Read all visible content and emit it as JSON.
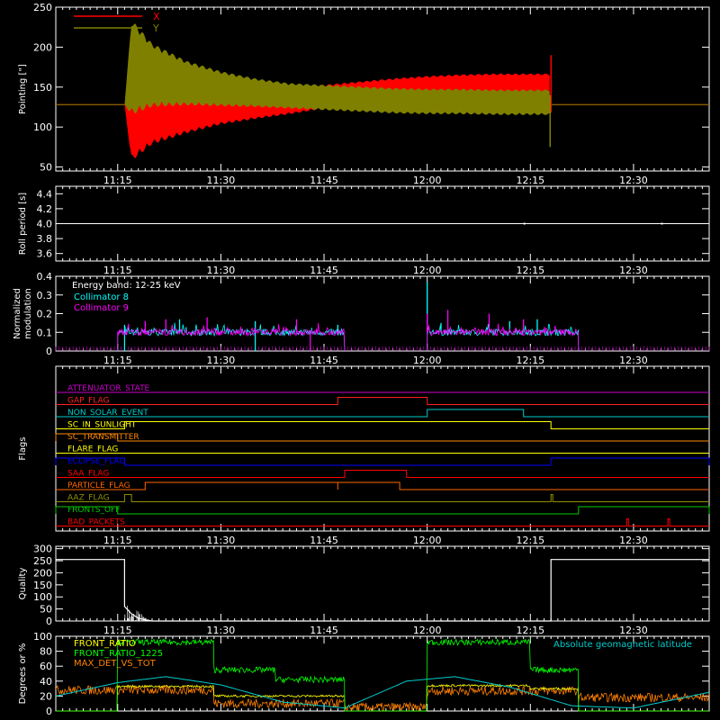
{
  "x_ticks": [
    "11:15",
    "11:30",
    "11:45",
    "12:00",
    "12:15",
    "12:30"
  ],
  "chart_data": [
    {
      "type": "line",
      "panel": "pointing",
      "ylabel": "Pointing [\"]",
      "ylim": [
        45,
        250
      ],
      "yticks": [
        "50",
        "100",
        "150",
        "200",
        "250"
      ],
      "xlim": [
        "11:06",
        "12:41"
      ],
      "legend": "top-left",
      "series": [
        {
          "name": "X",
          "color": "#ff0000",
          "x": [
            "11:06",
            "11:16",
            "11:17",
            "11:20",
            "11:25",
            "11:30",
            "11:35",
            "11:40",
            "11:45",
            "11:50",
            "11:55",
            "12:00",
            "12:05",
            "12:10",
            "12:15",
            "12:18",
            "12:18",
            "12:41"
          ],
          "y": [
            128,
            128,
            115,
            118,
            120,
            125,
            128,
            132,
            138,
            143,
            147,
            150,
            152,
            153,
            153,
            153,
            128,
            128
          ],
          "amplitude": [
            0,
            0,
            58,
            40,
            28,
            22,
            18,
            16,
            15,
            14,
            14,
            14,
            14,
            14,
            14,
            14,
            0,
            0
          ]
        },
        {
          "name": "Y",
          "color": "#808000",
          "x": [
            "11:06",
            "11:16",
            "11:17",
            "11:20",
            "11:25",
            "11:30",
            "11:35",
            "11:40",
            "11:45",
            "11:50",
            "11:55",
            "12:00",
            "12:05",
            "12:10",
            "12:15",
            "12:18",
            "12:18",
            "12:41"
          ],
          "y": [
            128,
            128,
            175,
            165,
            155,
            148,
            143,
            139,
            137,
            135,
            133,
            132,
            132,
            131,
            131,
            131,
            128,
            128
          ],
          "amplitude": [
            0,
            0,
            60,
            40,
            28,
            22,
            18,
            16,
            16,
            16,
            16,
            16,
            16,
            16,
            16,
            16,
            0,
            0
          ]
        }
      ]
    },
    {
      "type": "line",
      "panel": "roll_period",
      "ylabel": "Roll period [s]",
      "ylim": [
        3.5,
        4.5
      ],
      "yticks": [
        "3.6",
        "3.8",
        "4.0",
        "4.2",
        "4.4"
      ],
      "series": [
        {
          "name": "",
          "color": "#ffffff",
          "x": [
            "11:06",
            "12:41"
          ],
          "y": [
            4.0,
            4.0
          ]
        }
      ]
    },
    {
      "type": "line",
      "panel": "modulation",
      "ylabel": "Normalized modulation",
      "ylim": [
        0,
        0.4
      ],
      "yticks": [
        "0",
        "0.1",
        "0.2",
        "0.3",
        "0.4"
      ],
      "annotation": "Energy band: 12-25 keV",
      "legend": "top-left",
      "segments": [
        [
          "11:15",
          "11:48"
        ],
        [
          "12:00",
          "12:22"
        ]
      ],
      "series": [
        {
          "name": "Collimator 8",
          "color": "#00ffff",
          "baseline": 0.1,
          "spikes": [
            [
              "11:16",
              0.14
            ],
            [
              "11:24",
              0.17
            ],
            [
              "11:35",
              0.16
            ],
            [
              "11:47",
              0.14
            ],
            [
              "12:00",
              0.37
            ],
            [
              "12:02",
              0.15
            ],
            [
              "12:12",
              0.16
            ],
            [
              "12:16",
              0.17
            ]
          ],
          "drops": [
            "11:16",
            "11:35"
          ]
        },
        {
          "name": "Collimator 9",
          "color": "#ff00ff",
          "baseline": 0.1,
          "spikes": [
            [
              "11:19",
              0.16
            ],
            [
              "11:22",
              0.17
            ],
            [
              "11:28",
              0.18
            ],
            [
              "11:41",
              0.17
            ],
            [
              "12:00",
              0.2
            ],
            [
              "12:03",
              0.22
            ],
            [
              "12:09",
              0.2
            ],
            [
              "12:14",
              0.17
            ]
          ],
          "drops": [
            "11:43"
          ]
        }
      ]
    },
    {
      "type": "line",
      "panel": "flags",
      "ylabel": "Flags",
      "series": [
        {
          "name": "ATTENUATOR_STATE",
          "color": "#cc00cc",
          "steps": []
        },
        {
          "name": "GAP_FLAG",
          "color": "#ff2020",
          "steps": [
            [
              "11:47",
              "12:00"
            ]
          ]
        },
        {
          "name": "NON_SOLAR_EVENT",
          "color": "#00cccc",
          "steps": [
            [
              "12:00",
              "12:14"
            ]
          ]
        },
        {
          "name": "SC_IN_SUNLIGHT",
          "color": "#ffff00",
          "steps": [
            [
              "11:16",
              "12:18"
            ]
          ]
        },
        {
          "name": "SC_TRANSMITTER",
          "color": "#ff8800",
          "steps": [
            [
              "11:06",
              "11:15"
            ]
          ]
        },
        {
          "name": "FLARE_FLAG",
          "color": "#ffff00",
          "steps": []
        },
        {
          "name": "ECLIPSE_FLAG",
          "color": "#0000ff",
          "steps": [
            [
              "11:06",
              "11:16"
            ],
            [
              "12:18",
              "12:41"
            ]
          ]
        },
        {
          "name": "SAA_FLAG",
          "color": "#ff0000",
          "steps": [
            [
              "11:48",
              "11:57"
            ]
          ]
        },
        {
          "name": "PARTICLE_FLAG",
          "color": "#ff6600",
          "steps": [
            [
              "11:19",
              "11:47"
            ],
            [
              "11:47",
              "11:56"
            ]
          ]
        },
        {
          "name": "AAZ_FLAG",
          "color": "#909000",
          "steps": [
            [
              "11:16",
              "11:17"
            ],
            [
              "12:18",
              "12:18"
            ]
          ]
        },
        {
          "name": "FRONTS_OFF",
          "color": "#00cc00",
          "steps": [
            [
              "11:06",
              "11:15"
            ],
            [
              "12:22",
              "12:41"
            ]
          ]
        },
        {
          "name": "BAD_PACKETS",
          "color": "#ff0000",
          "steps": [
            [
              "12:29",
              "12:29"
            ],
            [
              "12:35",
              "12:35"
            ]
          ]
        }
      ]
    },
    {
      "type": "line",
      "panel": "quality",
      "ylabel": "Quality",
      "ylim": [
        0,
        310
      ],
      "yticks": [
        "0",
        "50",
        "100",
        "150",
        "200",
        "250",
        "300"
      ],
      "series": [
        {
          "name": "",
          "color": "#ffffff",
          "x": [
            "11:06",
            "11:16",
            "11:16",
            "11:17",
            "11:18",
            "11:19",
            "11:20",
            "12:18",
            "12:18",
            "12:41"
          ],
          "y": [
            255,
            255,
            60,
            30,
            12,
            5,
            0,
            0,
            255,
            255
          ]
        }
      ]
    },
    {
      "type": "line",
      "panel": "geomag",
      "ylabel": "Degrees or %",
      "ylim": [
        0,
        100
      ],
      "yticks": [
        "0",
        "20",
        "40",
        "60",
        "80",
        "100"
      ],
      "legend": "top-left",
      "series": [
        {
          "name": "FRONT_RATIO",
          "color": "#ffff00",
          "segments": [
            [
              "11:06",
              "11:15",
              0
            ],
            [
              "11:15",
              "11:29",
              33
            ],
            [
              "11:29",
              "11:48",
              20
            ],
            [
              "11:48",
              "12:00",
              0
            ],
            [
              "12:00",
              "12:15",
              34
            ],
            [
              "12:15",
              "12:22",
              30
            ],
            [
              "12:22",
              "12:41",
              0
            ]
          ]
        },
        {
          "name": "FRONT_RATIO_1225",
          "color": "#00ff00",
          "segments": [
            [
              "11:06",
              "11:15",
              0
            ],
            [
              "11:15",
              "11:29",
              92
            ],
            [
              "11:29",
              "11:38",
              55
            ],
            [
              "11:38",
              "11:48",
              42
            ],
            [
              "11:48",
              "12:00",
              0
            ],
            [
              "12:00",
              "12:15",
              92
            ],
            [
              "12:15",
              "12:22",
              55
            ],
            [
              "12:22",
              "12:41",
              0
            ]
          ]
        },
        {
          "name": "MAX_DET_VS_TOT",
          "color": "#ff8000",
          "segments": [
            [
              "11:06",
              "11:29",
              28
            ],
            [
              "11:29",
              "11:48",
              10
            ],
            [
              "11:48",
              "12:00",
              5
            ],
            [
              "12:00",
              "12:22",
              27
            ],
            [
              "12:22",
              "12:41",
              18
            ]
          ]
        },
        {
          "name": "Absolute geomagnetic latitude",
          "color": "#00cccc",
          "x": [
            "11:06",
            "11:15",
            "11:22",
            "11:30",
            "11:39",
            "11:48",
            "11:57",
            "12:04",
            "12:12",
            "12:21",
            "12:30",
            "12:41"
          ],
          "y": [
            20,
            38,
            46,
            35,
            12,
            4,
            40,
            46,
            32,
            7,
            4,
            25
          ]
        }
      ]
    }
  ]
}
